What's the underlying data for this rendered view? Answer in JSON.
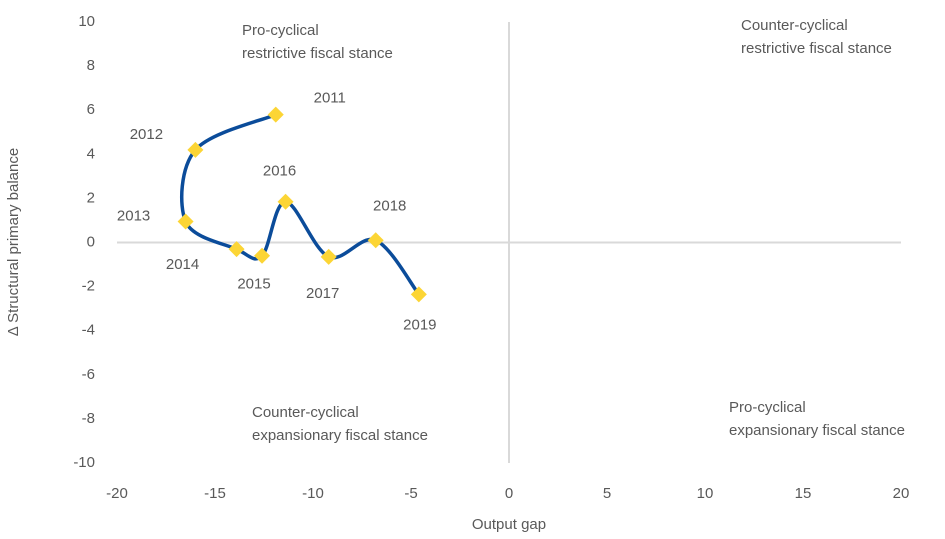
{
  "chart_data": {
    "type": "line",
    "x_label": "Output gap",
    "y_label": "Δ Structural primary balance",
    "xlim": [
      -20,
      20
    ],
    "xticks": [
      -20,
      -15,
      -10,
      -5,
      0,
      5,
      10,
      15,
      20
    ],
    "ylim": [
      -10,
      10
    ],
    "yticks": [
      -10,
      -8,
      -6,
      -4,
      -2,
      0,
      2,
      4,
      6,
      8,
      10
    ],
    "smooth": true,
    "series": [
      {
        "color": "#0b4c9a",
        "marker_color": "#fcd535",
        "x": [
          -11.9,
          -16.0,
          -16.5,
          -13.9,
          -12.6,
          -11.4,
          -9.2,
          -6.8,
          -4.6
        ],
        "values": [
          5.8,
          4.2,
          0.95,
          -0.3,
          -0.6,
          1.85,
          -0.65,
          0.1,
          -2.35
        ],
        "point_labels": [
          "2011",
          "2012",
          "2013",
          "2014",
          "2015",
          "2016",
          "2017",
          "2018",
          "2019"
        ]
      }
    ],
    "annotations": [
      [
        "Pro-cyclical",
        "restrictive fiscal  stance"
      ],
      [
        "Counter-cyclical",
        "restrictive  fiscal stance"
      ],
      [
        "Counter-cyclical",
        "expansionary fiscal stance"
      ],
      [
        "Pro-cyclical",
        "expansionary fiscal stance"
      ]
    ]
  }
}
